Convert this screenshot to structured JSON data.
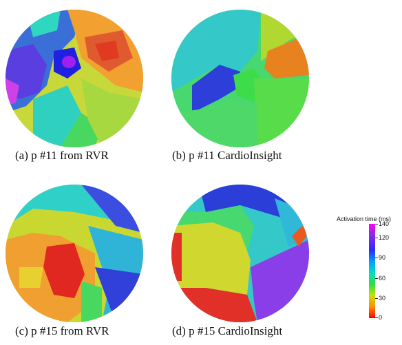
{
  "panels": [
    {
      "id": "a",
      "caption": "(a) p #11 from RVR"
    },
    {
      "id": "b",
      "caption": "(b) p #11 CardioInsight"
    },
    {
      "id": "c",
      "caption": "(c) p #15 from RVR"
    },
    {
      "id": "d",
      "caption": "(d) p #15 CardioInsight"
    }
  ],
  "colorbar": {
    "title": "Activation time (ms)",
    "ticks": [
      "140",
      "120",
      "90",
      "60",
      "30",
      "0"
    ],
    "colors": [
      "#ff00ff",
      "#2b2bff",
      "#00e0c0",
      "#2fdc40",
      "#c8e000",
      "#ff0000"
    ]
  }
}
